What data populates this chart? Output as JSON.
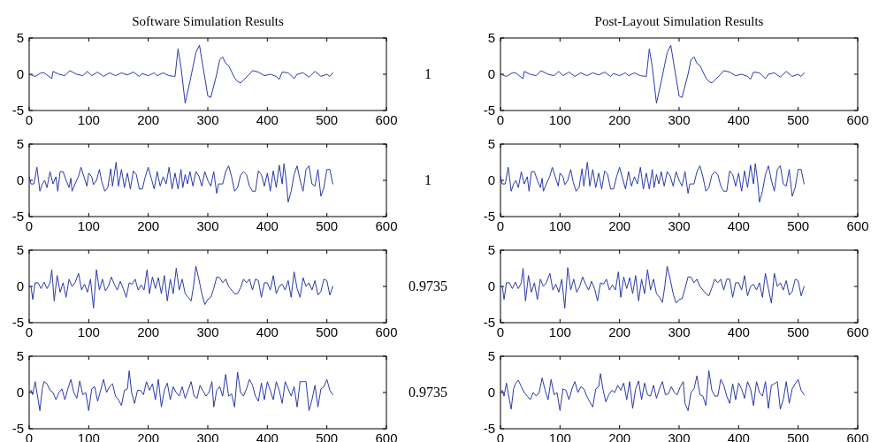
{
  "chart_data": [
    {
      "type": "line",
      "title": "Software Simulation Results",
      "annotations": [
        "1"
      ],
      "xlim": [
        0,
        600
      ],
      "xticks": [
        0,
        100,
        200,
        300,
        400,
        500,
        600
      ],
      "ylim": [
        -5,
        5
      ],
      "yticks": [
        -5,
        0,
        5
      ],
      "grid": false,
      "series": [
        {
          "color": "#2a3aa8",
          "x": [
            0,
            10,
            20,
            25,
            38,
            40,
            50,
            60,
            68,
            80,
            90,
            98,
            105,
            115,
            125,
            135,
            145,
            155,
            165,
            175,
            185,
            190,
            200,
            210,
            215,
            225,
            235,
            245,
            250,
            255,
            262,
            270,
            280,
            286,
            292,
            300,
            305,
            315,
            320,
            325,
            330,
            335,
            345,
            350,
            355,
            360,
            370,
            375,
            385,
            395,
            405,
            415,
            420,
            425,
            435,
            445,
            450,
            460,
            470,
            480,
            490,
            500,
            505,
            510
          ],
          "values": [
            0,
            -0.3,
            0.2,
            0.2,
            -0.6,
            0.4,
            0,
            -0.2,
            0.5,
            0,
            -0.2,
            0.4,
            -0.2,
            0.3,
            -0.3,
            0.2,
            -0.2,
            0.2,
            -0.1,
            0.3,
            -0.3,
            0.1,
            -0.2,
            0.2,
            -0.2,
            0.2,
            -0.2,
            -0.3,
            3.5,
            1,
            -4,
            -1,
            3,
            4,
            1,
            -3,
            -3.2,
            0,
            2,
            2.4,
            1.5,
            1.2,
            -0.5,
            -1,
            -1.2,
            -0.8,
            0,
            0.5,
            0.3,
            -0.2,
            0,
            -0.3,
            -0.7,
            0.3,
            0.2,
            -0.6,
            0,
            0.2,
            -0.4,
            0.4,
            -0.3,
            0,
            -0.3,
            0.2
          ]
        }
      ]
    },
    {
      "type": "line",
      "title": "Post-Layout Simulation Results",
      "xlim": [
        0,
        600
      ],
      "xticks": [
        0,
        100,
        200,
        300,
        400,
        500,
        600
      ],
      "ylim": [
        -5,
        5
      ],
      "yticks": [
        -5,
        0,
        5
      ],
      "grid": false,
      "series": [
        {
          "color": "#2a3aa8",
          "x": [
            0,
            10,
            20,
            25,
            38,
            40,
            50,
            60,
            68,
            80,
            90,
            98,
            105,
            115,
            125,
            135,
            145,
            155,
            165,
            175,
            185,
            190,
            200,
            210,
            215,
            225,
            235,
            245,
            250,
            255,
            262,
            270,
            280,
            286,
            292,
            300,
            305,
            315,
            320,
            325,
            330,
            335,
            345,
            350,
            355,
            360,
            370,
            375,
            385,
            395,
            405,
            415,
            420,
            425,
            435,
            445,
            450,
            460,
            470,
            480,
            490,
            500,
            505,
            510
          ],
          "values": [
            0,
            -0.3,
            0.2,
            0.2,
            -0.6,
            0.4,
            0,
            -0.2,
            0.5,
            0,
            -0.2,
            0.4,
            -0.2,
            0.3,
            -0.3,
            0.2,
            -0.2,
            0.2,
            -0.1,
            0.3,
            -0.3,
            0.1,
            -0.2,
            0.2,
            -0.2,
            0.2,
            -0.2,
            -0.3,
            3.5,
            1,
            -4,
            -1,
            3,
            4,
            1,
            -3,
            -3.2,
            0,
            2,
            2.4,
            1.5,
            1.2,
            -0.5,
            -1,
            -1.2,
            -0.8,
            0,
            0.5,
            0.3,
            -0.2,
            0,
            -0.3,
            -0.7,
            0.3,
            0.2,
            -0.6,
            0,
            0.2,
            -0.4,
            0.4,
            -0.3,
            0,
            -0.3,
            0.2
          ]
        }
      ]
    },
    {
      "type": "line",
      "annotations": [
        "1"
      ],
      "xlim": [
        0,
        600
      ],
      "xticks": [
        0,
        100,
        200,
        300,
        400,
        500,
        600
      ],
      "ylim": [
        -5,
        5
      ],
      "yticks": [
        -5,
        0,
        5
      ],
      "grid": false,
      "series": [
        {
          "color": "#2a3aa8",
          "x": [
            0,
            3,
            8,
            13,
            18,
            22,
            26,
            30,
            35,
            40,
            45,
            48,
            52,
            57,
            62,
            67,
            70,
            72,
            77,
            83,
            87,
            92,
            97,
            100,
            105,
            108,
            113,
            118,
            122,
            127,
            132,
            137,
            140,
            146,
            150,
            155,
            160,
            165,
            170,
            175,
            180,
            185,
            190,
            195,
            200,
            205,
            210,
            215,
            220,
            225,
            230,
            235,
            240,
            245,
            250,
            255,
            258,
            262,
            266,
            270,
            275,
            280,
            285,
            290,
            295,
            300,
            305,
            310,
            315,
            318,
            325,
            330,
            335,
            340,
            345,
            350,
            355,
            360,
            365,
            370,
            375,
            380,
            385,
            390,
            395,
            400,
            405,
            410,
            415,
            420,
            425,
            428,
            432,
            435,
            440,
            445,
            450,
            455,
            460,
            465,
            470,
            475,
            480,
            485,
            490,
            495,
            500,
            505,
            510
          ],
          "values": [
            0.5,
            -0.5,
            -0.5,
            1.8,
            -1.5,
            -0.5,
            0,
            -1,
            1.2,
            -0.5,
            0.5,
            -1.5,
            1.2,
            1.2,
            0,
            -1,
            0.3,
            -1.5,
            -0.5,
            0.6,
            1.8,
            0.5,
            -0.8,
            1,
            0.5,
            -0.6,
            0,
            1.5,
            -0.2,
            -1.5,
            -1,
            1.6,
            -0.8,
            2.5,
            -0.8,
            1.5,
            -1,
            1,
            -1.2,
            1.3,
            0.8,
            -1.2,
            -1.2,
            0.5,
            1.8,
            0.3,
            -1.2,
            1.2,
            -0.8,
            0.5,
            -0.5,
            1.8,
            -1.2,
            1,
            -1.2,
            1.5,
            -1,
            0.8,
            -0.5,
            1.2,
            -0.8,
            1.2,
            0.6,
            -0.8,
            1.2,
            0,
            -0.8,
            1.2,
            -1.8,
            -0.5,
            -0.5,
            1.2,
            2,
            0.5,
            -1.5,
            -1,
            0.7,
            1.2,
            0.8,
            -0.8,
            -1.5,
            -1.5,
            1.3,
            0.8,
            -0.8,
            1,
            -1.5,
            1.3,
            -1,
            2.1,
            -0.5,
            2.3,
            -0.2,
            -3,
            -1.5,
            0.8,
            2,
            0,
            -1.5,
            1.5,
            2,
            -0.5,
            -0.8,
            1.5,
            -2.2,
            -1,
            1.5,
            1.5,
            -0.5
          ]
        }
      ]
    },
    {
      "type": "line",
      "xlim": [
        0,
        600
      ],
      "xticks": [
        0,
        100,
        200,
        300,
        400,
        500,
        600
      ],
      "ylim": [
        -5,
        5
      ],
      "yticks": [
        -5,
        0,
        5
      ],
      "grid": false,
      "series": [
        {
          "color": "#2a3aa8",
          "x": [
            0,
            3,
            8,
            13,
            18,
            22,
            26,
            30,
            35,
            40,
            45,
            48,
            52,
            57,
            62,
            67,
            70,
            72,
            77,
            83,
            87,
            92,
            97,
            100,
            105,
            108,
            113,
            118,
            122,
            127,
            132,
            137,
            140,
            146,
            150,
            155,
            160,
            165,
            170,
            175,
            180,
            185,
            190,
            195,
            200,
            205,
            210,
            215,
            220,
            225,
            230,
            235,
            240,
            245,
            250,
            255,
            258,
            262,
            266,
            270,
            275,
            280,
            285,
            290,
            295,
            300,
            305,
            310,
            315,
            318,
            325,
            330,
            335,
            340,
            345,
            350,
            355,
            360,
            365,
            370,
            375,
            380,
            385,
            390,
            395,
            400,
            405,
            410,
            415,
            420,
            425,
            428,
            432,
            435,
            440,
            445,
            450,
            455,
            460,
            465,
            470,
            475,
            480,
            485,
            490,
            495,
            500,
            505,
            510
          ],
          "values": [
            0.5,
            -0.5,
            -0.5,
            1.8,
            -1.5,
            -0.5,
            0,
            -1,
            1.2,
            -0.5,
            0.5,
            -1.5,
            1.2,
            1.2,
            0,
            -1,
            0.3,
            -1.5,
            -0.5,
            0.6,
            1.8,
            0.5,
            -0.8,
            1,
            0.5,
            -0.6,
            0,
            1.5,
            -0.2,
            -1.5,
            -1,
            1.6,
            -0.8,
            2.5,
            -0.8,
            1.5,
            -1,
            1,
            -1.2,
            1.3,
            0.8,
            -1.2,
            -1.2,
            0.5,
            1.8,
            0.3,
            -1.2,
            1.2,
            -0.8,
            0.5,
            -0.5,
            1.8,
            -1.2,
            1,
            -1.2,
            1.5,
            -1,
            0.8,
            -0.5,
            1.2,
            -0.8,
            1.2,
            0.6,
            -0.8,
            1.2,
            0,
            -0.8,
            1.2,
            -1.8,
            -0.5,
            -0.5,
            1.2,
            2,
            0.5,
            -1.5,
            -1,
            0.7,
            1.2,
            0.8,
            -0.8,
            -1.5,
            -1.5,
            1.3,
            0.8,
            -0.8,
            1,
            -1.5,
            1.3,
            -1,
            2.1,
            -0.5,
            2.3,
            -0.2,
            -3,
            -1.5,
            0.8,
            2,
            0,
            -1.5,
            1.5,
            2,
            -0.5,
            -0.8,
            1.5,
            -2.2,
            -1,
            1.5,
            1.5,
            -0.5
          ]
        }
      ]
    },
    {
      "type": "line",
      "annotations": [
        "0.9735"
      ],
      "xlim": [
        0,
        600
      ],
      "xticks": [
        0,
        100,
        200,
        300,
        400,
        500,
        600
      ],
      "ylim": [
        -5,
        5
      ],
      "yticks": [
        -5,
        0,
        5
      ],
      "grid": false,
      "series": [
        {
          "color": "#2a3aa8",
          "x": [
            0,
            3,
            6,
            10,
            15,
            20,
            25,
            30,
            35,
            38,
            42,
            47,
            52,
            57,
            62,
            67,
            72,
            77,
            83,
            88,
            93,
            98,
            103,
            108,
            113,
            118,
            123,
            128,
            133,
            138,
            143,
            148,
            153,
            158,
            163,
            168,
            173,
            178,
            183,
            188,
            193,
            198,
            202,
            207,
            212,
            217,
            222,
            227,
            232,
            237,
            242,
            247,
            252,
            257,
            262,
            267,
            272,
            276,
            280,
            285,
            290,
            295,
            300,
            305,
            310,
            315,
            320,
            325,
            330,
            335,
            340,
            345,
            350,
            355,
            360,
            365,
            370,
            375,
            380,
            385,
            390,
            395,
            400,
            405,
            410,
            415,
            420,
            425,
            430,
            435,
            440,
            445,
            450,
            455,
            460,
            465,
            470,
            475,
            480,
            485,
            490,
            495,
            500,
            505,
            510
          ],
          "values": [
            0,
            0,
            -1.8,
            0.5,
            0.5,
            -0.3,
            0.6,
            -0.3,
            0.5,
            2.3,
            -2,
            1.5,
            -0.8,
            0.5,
            -1.5,
            1,
            0,
            0.5,
            1.8,
            -0.5,
            0.3,
            -0.8,
            1,
            -3,
            2.3,
            -0.5,
            1,
            -0.6,
            0,
            1.3,
            0.3,
            -0.5,
            0.7,
            -0.3,
            -1.5,
            0.5,
            0.3,
            1,
            -0.5,
            0.2,
            -0.5,
            2.3,
            -1,
            1.3,
            -0.3,
            1.2,
            -1,
            1.5,
            -2,
            1,
            -1,
            2.5,
            -0.5,
            1,
            -1,
            -1.5,
            -2,
            0,
            2.8,
            1,
            -1,
            -2.5,
            -1.8,
            -1.5,
            -0.3,
            1.3,
            1.2,
            0.5,
            1,
            0,
            -0.5,
            -1,
            -1,
            -0.2,
            1,
            0.5,
            1,
            -0.5,
            1,
            0.8,
            -1.5,
            0.5,
            0.5,
            -0.5,
            1.5,
            -1,
            0,
            0.3,
            -0.5,
            0.8,
            -1.5,
            2,
            -0.3,
            -1.5,
            1.2,
            0,
            0.5,
            -0.5,
            0.8,
            -1.2,
            -0.7,
            1,
            0.8,
            -1.2,
            0
          ]
        }
      ]
    },
    {
      "type": "line",
      "xlim": [
        0,
        600
      ],
      "xticks": [
        0,
        100,
        200,
        300,
        400,
        500,
        600
      ],
      "ylim": [
        -5,
        5
      ],
      "yticks": [
        -5,
        0,
        5
      ],
      "grid": false,
      "series": [
        {
          "color": "#2a3aa8",
          "x": [
            0,
            3,
            6,
            10,
            15,
            20,
            25,
            30,
            35,
            38,
            42,
            47,
            52,
            57,
            62,
            67,
            72,
            77,
            83,
            88,
            93,
            98,
            103,
            108,
            113,
            118,
            123,
            128,
            133,
            138,
            143,
            148,
            153,
            158,
            163,
            168,
            173,
            178,
            183,
            188,
            193,
            198,
            202,
            207,
            212,
            217,
            222,
            227,
            232,
            237,
            242,
            247,
            252,
            257,
            262,
            267,
            272,
            276,
            280,
            285,
            290,
            295,
            300,
            305,
            310,
            315,
            320,
            325,
            330,
            335,
            340,
            345,
            350,
            355,
            360,
            365,
            370,
            375,
            380,
            385,
            390,
            395,
            400,
            405,
            410,
            415,
            420,
            425,
            430,
            435,
            440,
            445,
            450,
            455,
            460,
            465,
            470,
            475,
            480,
            485,
            490,
            495,
            500,
            505,
            510
          ],
          "values": [
            0,
            0,
            -1.8,
            0.5,
            0.5,
            -0.3,
            0.6,
            -0.3,
            0.5,
            2.5,
            -2,
            1.5,
            -0.8,
            0.5,
            -1.8,
            1,
            0,
            0.5,
            1.8,
            -0.5,
            0.3,
            -0.8,
            1,
            -3,
            2.6,
            -0.5,
            1,
            -0.8,
            0,
            1.3,
            0.3,
            -0.5,
            0.7,
            -0.3,
            -2,
            0.5,
            0.3,
            1,
            -0.5,
            0.2,
            -0.5,
            2,
            -1.5,
            1.3,
            -0.3,
            1.2,
            -1,
            1.5,
            -2,
            1,
            -1,
            2.3,
            -0.5,
            1,
            -1,
            -1.5,
            -2.2,
            0,
            2.8,
            1,
            -1,
            -2.3,
            -1.8,
            -1.7,
            -0.3,
            1.3,
            1.3,
            0.5,
            1,
            0,
            -0.5,
            -1,
            -1.3,
            -0.2,
            1,
            0.5,
            1,
            -0.5,
            1,
            1,
            -1.5,
            0.5,
            0.5,
            -0.5,
            1.5,
            -1.3,
            0,
            0.3,
            -0.5,
            0.5,
            -1.5,
            1.8,
            -0.3,
            -2.3,
            1.8,
            0,
            0.5,
            -0.5,
            0.8,
            -1.2,
            -0.7,
            1,
            0.8,
            -1.3,
            0
          ]
        }
      ]
    },
    {
      "type": "line",
      "annotations": [
        "0.9735"
      ],
      "xlim": [
        0,
        600
      ],
      "xticks": [
        0,
        100,
        200,
        300,
        400,
        500,
        600
      ],
      "ylim": [
        -5,
        5
      ],
      "yticks": [
        -5,
        0,
        5
      ],
      "grid": false,
      "series": [
        {
          "color": "#2a3aa8",
          "x": [
            0,
            3,
            6,
            10,
            15,
            18,
            22,
            25,
            30,
            35,
            40,
            45,
            50,
            55,
            60,
            65,
            70,
            75,
            80,
            85,
            90,
            95,
            100,
            105,
            110,
            115,
            120,
            125,
            130,
            135,
            140,
            145,
            150,
            155,
            160,
            165,
            168,
            172,
            177,
            182,
            187,
            192,
            197,
            202,
            207,
            212,
            217,
            222,
            227,
            232,
            237,
            242,
            247,
            252,
            257,
            262,
            267,
            272,
            277,
            282,
            287,
            292,
            297,
            302,
            307,
            310,
            315,
            320,
            325,
            330,
            335,
            340,
            345,
            350,
            355,
            360,
            365,
            370,
            375,
            380,
            385,
            390,
            395,
            400,
            405,
            410,
            415,
            420,
            425,
            430,
            435,
            440,
            445,
            450,
            455,
            460,
            465,
            470,
            475,
            480,
            485,
            490,
            495,
            500,
            505,
            510
          ],
          "values": [
            0,
            0.3,
            -0.3,
            1.5,
            -1,
            -2.5,
            0.5,
            1.5,
            1.2,
            0.3,
            0,
            -1,
            0,
            0.5,
            -1,
            0.5,
            1.8,
            0,
            -0.8,
            1.6,
            -0.3,
            0,
            -2.5,
            0.5,
            0.8,
            -1.2,
            0.3,
            1.8,
            0,
            0.8,
            1.2,
            -0.5,
            -1,
            -1.8,
            0.3,
            0.5,
            3,
            0,
            -1.5,
            0.3,
            0.3,
            -0.3,
            1.5,
            0.3,
            1.2,
            -1,
            1.8,
            -2,
            0.3,
            1.3,
            -1,
            0.8,
            0,
            -0.5,
            0.8,
            -0.8,
            0.3,
            1.5,
            -0.5,
            -0.8,
            1,
            0.2,
            -0.5,
            0,
            1.5,
            -2,
            0.3,
            0.8,
            -0.5,
            2.5,
            -0.5,
            -0.2,
            -2,
            2.8,
            0,
            -0.5,
            0.5,
            1.8,
            1,
            -0.5,
            -1.2,
            1.3,
            -1,
            1.5,
            0.3,
            -1,
            1.5,
            0.3,
            -1.5,
            1.5,
            0.5,
            -0.5,
            0.8,
            -2,
            1.5,
            1.5,
            1.5,
            -2.5,
            -1,
            1,
            -2,
            0.5,
            0.8,
            1.8,
            0.3,
            -0.3
          ]
        }
      ]
    },
    {
      "type": "line",
      "xlim": [
        0,
        600
      ],
      "xticks": [
        0,
        100,
        200,
        300,
        400,
        500,
        600
      ],
      "ylim": [
        -5,
        5
      ],
      "yticks": [
        -5,
        0,
        5
      ],
      "grid": false,
      "series": [
        {
          "color": "#2a3aa8",
          "x": [
            0,
            3,
            6,
            10,
            15,
            18,
            22,
            25,
            30,
            35,
            40,
            45,
            50,
            55,
            60,
            65,
            70,
            75,
            80,
            85,
            90,
            95,
            100,
            105,
            110,
            115,
            120,
            125,
            130,
            135,
            140,
            145,
            150,
            155,
            160,
            165,
            168,
            172,
            177,
            182,
            187,
            192,
            197,
            202,
            207,
            212,
            217,
            222,
            227,
            232,
            237,
            242,
            247,
            252,
            257,
            262,
            267,
            272,
            277,
            282,
            287,
            292,
            297,
            302,
            307,
            310,
            315,
            320,
            325,
            330,
            335,
            340,
            345,
            350,
            355,
            360,
            365,
            370,
            375,
            380,
            385,
            390,
            395,
            400,
            405,
            410,
            415,
            420,
            425,
            430,
            435,
            440,
            445,
            450,
            455,
            460,
            465,
            470,
            475,
            480,
            485,
            490,
            495,
            500,
            505,
            510
          ],
          "values": [
            0,
            0.3,
            -0.5,
            1.3,
            -1,
            -2.3,
            0.5,
            1.2,
            1.7,
            0.8,
            0,
            -0.5,
            -1,
            0,
            -0.5,
            0,
            2,
            0.3,
            -1,
            1.8,
            -0.3,
            0,
            -2.5,
            0.5,
            0.3,
            -1,
            0.5,
            1.5,
            0,
            0.8,
            0.5,
            -0.5,
            -1.3,
            -2,
            0.5,
            0.8,
            2.6,
            0.5,
            -1.3,
            -0.3,
            0.3,
            0,
            1,
            0.3,
            1.3,
            -1,
            1.5,
            -2.2,
            0.5,
            1.6,
            -1,
            1.3,
            -0.3,
            -0.5,
            1,
            -0.8,
            0.5,
            1.5,
            -0.3,
            -0.2,
            0.8,
            0,
            -0.3,
            0.8,
            1.5,
            -1.5,
            -2.5,
            0,
            0.5,
            2.3,
            -0.3,
            -0.5,
            -1.8,
            3,
            0.3,
            -0.5,
            -0.5,
            1.8,
            1,
            -0.5,
            -1.5,
            1.2,
            -1,
            1.3,
            0.5,
            -0.8,
            1.5,
            0.5,
            -1.8,
            1.5,
            0,
            -0.5,
            1.5,
            -2.2,
            1,
            1.2,
            1.5,
            -2.3,
            -1,
            1.5,
            -1.5,
            0.5,
            1.2,
            1.8,
            0.3,
            -0.3
          ]
        }
      ]
    }
  ]
}
